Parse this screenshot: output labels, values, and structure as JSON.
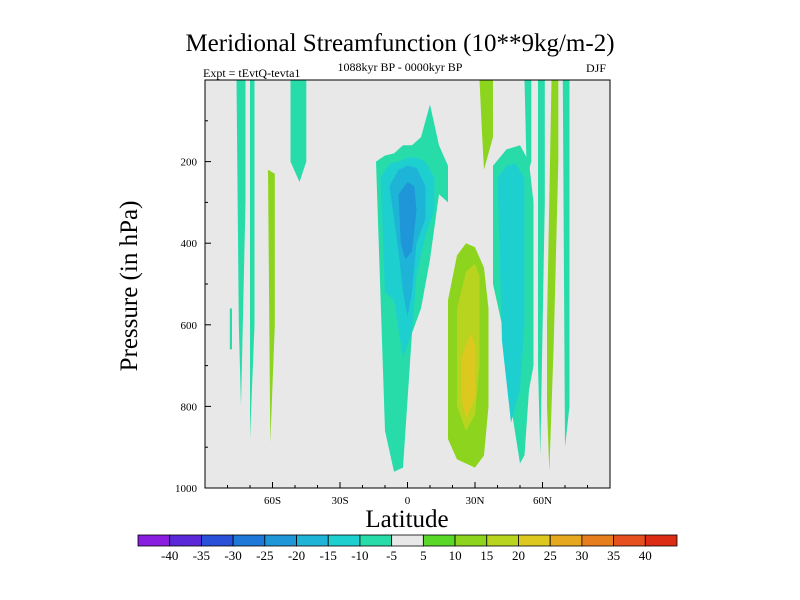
{
  "chart_data": {
    "type": "heatmap",
    "title": "Meridional Streamfunction (10**9kg/m-2)",
    "subtitle": "1088kyr BP - 0000kyr BP",
    "experiment": "Expt = tEvtQ-tevta1",
    "season": "DJF",
    "xlabel": "Latitude",
    "ylabel": "Pressure (in hPa)",
    "xlim": [
      -90,
      90
    ],
    "ylim": [
      1000,
      0
    ],
    "x_ticks": [
      -60,
      -30,
      0,
      30,
      60
    ],
    "x_tick_labels": [
      "60S",
      "30S",
      "0",
      "30N",
      "60N"
    ],
    "y_ticks": [
      200,
      400,
      600,
      800,
      1000
    ],
    "y_tick_labels": [
      "200",
      "400",
      "600",
      "800",
      "1000"
    ],
    "colorbar": {
      "levels": [
        -40,
        -35,
        -30,
        -25,
        -20,
        -15,
        -10,
        -5,
        5,
        10,
        15,
        20,
        25,
        30,
        35,
        40
      ],
      "labels": [
        "-40",
        "-35",
        "-30",
        "-25",
        "-20",
        "-15",
        "-10",
        "-5",
        "5",
        "10",
        "15",
        "20",
        "25",
        "30",
        "35",
        "40"
      ],
      "colors": [
        "#8a1ee0",
        "#5a28d8",
        "#2850d8",
        "#1e78d8",
        "#1e96d8",
        "#1eb4d8",
        "#1ecfcf",
        "#28dcaa",
        "#e8e8e8",
        "#5ad828",
        "#8cd41e",
        "#b8d41e",
        "#dcc81e",
        "#e6a81e",
        "#e67e1e",
        "#e6501e",
        "#dc2d14"
      ],
      "zero_band_color": "#e8e8e8"
    },
    "features": [
      {
        "name": "deep-tropical-cell",
        "level": -10,
        "lat": [
          -14,
          -10,
          -6,
          -2,
          2,
          6,
          10,
          14,
          18,
          18,
          14,
          10,
          6,
          2,
          -2,
          -6,
          -10,
          -14
        ],
        "p": [
          200,
          185,
          180,
          160,
          160,
          140,
          60,
          160,
          210,
          300,
          280,
          440,
          560,
          620,
          950,
          960,
          860,
          200
        ]
      },
      {
        "name": "deep-tropical-cell-core1",
        "level": -15,
        "lat": [
          -12,
          -8,
          -4,
          0,
          4,
          8,
          12,
          12,
          8,
          4,
          2,
          -2,
          -6,
          -10,
          -12
        ],
        "p": [
          240,
          205,
          200,
          190,
          190,
          200,
          240,
          320,
          380,
          480,
          620,
          680,
          540,
          520,
          240
        ]
      },
      {
        "name": "deep-tropical-cell-core2",
        "level": -20,
        "lat": [
          -8,
          -4,
          0,
          4,
          8,
          8,
          4,
          2,
          0,
          -2,
          -4,
          -8
        ],
        "p": [
          260,
          220,
          210,
          215,
          260,
          340,
          400,
          520,
          580,
          520,
          420,
          260
        ]
      },
      {
        "name": "deep-tropical-cell-core3",
        "level": -25,
        "lat": [
          -4,
          0,
          3,
          4,
          2,
          -1,
          -3,
          -4
        ],
        "p": [
          280,
          250,
          260,
          320,
          420,
          440,
          400,
          280
        ]
      },
      {
        "name": "nh-subtropical-negative",
        "level": -10,
        "lat": [
          38,
          44,
          50,
          54,
          56,
          56,
          54,
          52,
          50,
          46,
          42,
          38,
          38
        ],
        "p": [
          210,
          170,
          160,
          200,
          300,
          700,
          760,
          920,
          940,
          800,
          600,
          500,
          210
        ]
      },
      {
        "name": "nh-subtropical-negative-core",
        "level": -15,
        "lat": [
          40,
          44,
          48,
          52,
          52,
          50,
          46,
          42,
          40
        ],
        "p": [
          240,
          210,
          205,
          240,
          600,
          760,
          840,
          640,
          240
        ]
      },
      {
        "name": "nh-positive-cell",
        "level": 10,
        "lat": [
          18,
          22,
          26,
          30,
          34,
          36,
          36,
          34,
          30,
          26,
          22,
          18,
          18
        ],
        "p": [
          540,
          430,
          400,
          410,
          460,
          560,
          800,
          920,
          950,
          940,
          930,
          880,
          540
        ]
      },
      {
        "name": "nh-positive-cell-core",
        "level": 15,
        "lat": [
          22,
          26,
          30,
          32,
          32,
          30,
          26,
          22,
          22
        ],
        "p": [
          560,
          470,
          450,
          480,
          700,
          820,
          860,
          800,
          560
        ]
      },
      {
        "name": "nh-positive-cell-core2",
        "level": 20,
        "lat": [
          24,
          28,
          30,
          30,
          26,
          24,
          24
        ],
        "p": [
          680,
          620,
          650,
          780,
          830,
          780,
          680
        ]
      },
      {
        "name": "nh-polar-positive",
        "level": 10,
        "lat": [
          64,
          67,
          67,
          65,
          63,
          62,
          62,
          64
        ],
        "p": [
          0,
          0,
          200,
          640,
          960,
          800,
          600,
          0
        ]
      },
      {
        "name": "nh-polar-negative",
        "level": -10,
        "lat": [
          59,
          61,
          61,
          59,
          58,
          58
        ],
        "p": [
          0,
          0,
          300,
          920,
          700,
          0
        ]
      },
      {
        "name": "nh-far-polar-negative",
        "level": -10,
        "lat": [
          69,
          72,
          72,
          70,
          69
        ],
        "p": [
          0,
          0,
          800,
          900,
          0
        ]
      },
      {
        "name": "nh-upper-positive",
        "level": 10,
        "lat": [
          32,
          38,
          38,
          34,
          33,
          32
        ],
        "p": [
          0,
          0,
          140,
          220,
          120,
          0
        ]
      },
      {
        "name": "nh-upper-negative",
        "level": -10,
        "lat": [
          52,
          55,
          55,
          53,
          52
        ],
        "p": [
          0,
          0,
          200,
          240,
          0
        ]
      },
      {
        "name": "sh-polar-negative-1",
        "level": -10,
        "lat": [
          -76,
          -72,
          -72,
          -74,
          -75,
          -76
        ],
        "p": [
          0,
          0,
          300,
          800,
          600,
          0
        ]
      },
      {
        "name": "sh-polar-negative-2",
        "level": -10,
        "lat": [
          -70,
          -68,
          -68,
          -70,
          -70
        ],
        "p": [
          0,
          0,
          600,
          880,
          0
        ]
      },
      {
        "name": "sh-polar-positive",
        "level": 10,
        "lat": [
          -62,
          -59,
          -59,
          -61,
          -62
        ],
        "p": [
          220,
          230,
          600,
          890,
          220
        ]
      },
      {
        "name": "sh-upper-negative",
        "level": -10,
        "lat": [
          -52,
          -45,
          -45,
          -48,
          -52,
          -52
        ],
        "p": [
          0,
          0,
          200,
          250,
          200,
          0
        ]
      },
      {
        "name": "sh-small-negative",
        "level": -10,
        "lat": [
          -79,
          -78,
          -78,
          -79
        ],
        "p": [
          560,
          560,
          660,
          660
        ]
      }
    ]
  }
}
